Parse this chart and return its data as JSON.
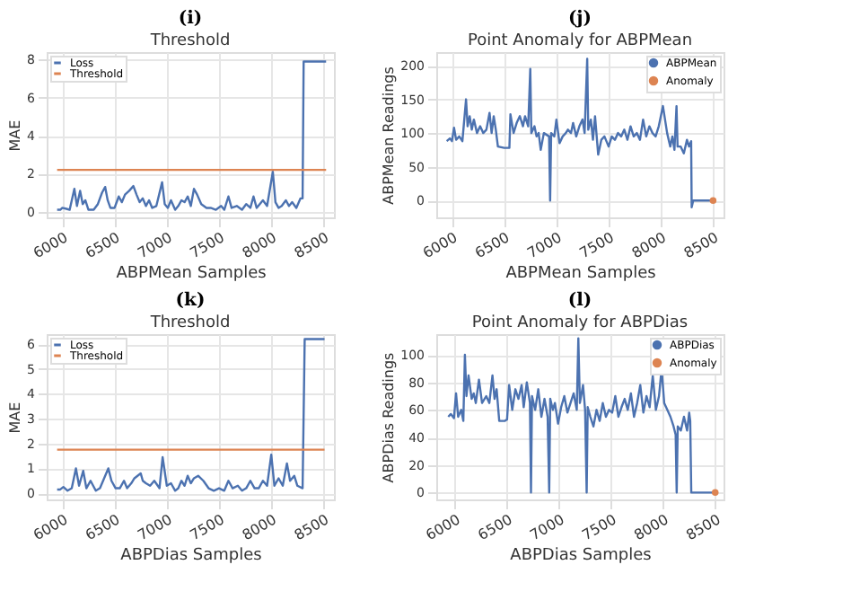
{
  "chart_data": [
    {
      "type": "line",
      "title": "Threshold",
      "annotations": [
        "(i)"
      ],
      "xlabel": "ABPMean Samples",
      "ylabel": "MAE",
      "xlim": [
        5850,
        8600
      ],
      "xticks": [
        6000,
        6500,
        7000,
        7500,
        8000,
        8500
      ],
      "ylim": [
        -0.3,
        8.4
      ],
      "yticks": [
        0,
        2,
        4,
        6,
        8
      ],
      "grid": true,
      "legend": "top left",
      "series": [
        {
          "name": "Loss",
          "color": "#4c72b0",
          "x": [
            5950,
            5980,
            6000,
            6040,
            6070,
            6115,
            6140,
            6170,
            6195,
            6220,
            6250,
            6300,
            6340,
            6380,
            6410,
            6434,
            6460,
            6500,
            6540,
            6570,
            6600,
            6640,
            6680,
            6710,
            6740,
            6770,
            6800,
            6830,
            6860,
            6900,
            6955,
            6980,
            7010,
            7040,
            7080,
            7110,
            7140,
            7170,
            7200,
            7230,
            7260,
            7290,
            7330,
            7380,
            7420,
            7470,
            7520,
            7550,
            7590,
            7620,
            7670,
            7720,
            7760,
            7800,
            7830,
            7860,
            7920,
            7960,
            8015,
            8040,
            8070,
            8100,
            8140,
            8170,
            8200,
            8240,
            8280,
            8300,
            8310,
            8525
          ],
          "values": [
            0.1,
            0.1,
            0.2,
            0.15,
            0.1,
            1.2,
            0.3,
            1.1,
            0.4,
            0.6,
            0.1,
            0.1,
            0.4,
            1.0,
            1.3,
            0.6,
            0.2,
            0.2,
            0.8,
            0.5,
            0.9,
            1.1,
            1.35,
            0.9,
            0.5,
            0.7,
            0.3,
            0.6,
            0.2,
            0.3,
            1.55,
            0.4,
            0.2,
            0.6,
            0.1,
            0.3,
            0.6,
            0.5,
            0.8,
            0.3,
            1.2,
            0.9,
            0.4,
            0.2,
            0.2,
            0.1,
            0.3,
            0.1,
            0.8,
            0.2,
            0.3,
            0.1,
            0.4,
            0.2,
            0.8,
            0.2,
            0.6,
            0.3,
            2.1,
            0.5,
            0.2,
            0.3,
            0.6,
            0.3,
            0.5,
            0.2,
            0.7,
            0.7,
            7.9,
            7.9
          ]
        },
        {
          "name": "Threshold",
          "color": "#dd8452",
          "x": [
            5950,
            8525
          ],
          "values": [
            2.2,
            2.2
          ]
        }
      ]
    },
    {
      "type": "line",
      "title": "Point Anomaly for ABPMean",
      "annotations": [
        "(j)"
      ],
      "xlabel": "ABPMean Samples",
      "ylabel": "ABPMean Readings",
      "xlim": [
        5850,
        8600
      ],
      "xticks": [
        6000,
        6500,
        7000,
        7500,
        8000,
        8500
      ],
      "ylim": [
        -25,
        220
      ],
      "yticks": [
        0,
        50,
        100,
        150,
        200
      ],
      "grid": true,
      "legend": "top right",
      "series": [
        {
          "name": "ABPMean",
          "color": "#4c72b0",
          "x": [
            5950,
            5980,
            6000,
            6020,
            6040,
            6070,
            6100,
            6135,
            6150,
            6170,
            6190,
            6210,
            6240,
            6270,
            6300,
            6330,
            6360,
            6380,
            6400,
            6420,
            6440,
            6500,
            6550,
            6560,
            6590,
            6620,
            6650,
            6680,
            6700,
            6730,
            6750,
            6760,
            6790,
            6810,
            6830,
            6850,
            6880,
            6900,
            6930,
            6940,
            6950,
            6980,
            7000,
            7030,
            7060,
            7090,
            7110,
            7140,
            7160,
            7190,
            7220,
            7250,
            7270,
            7295,
            7305,
            7330,
            7350,
            7370,
            7400,
            7430,
            7460,
            7500,
            7530,
            7560,
            7590,
            7620,
            7650,
            7680,
            7710,
            7740,
            7770,
            7800,
            7830,
            7860,
            7890,
            7920,
            7950,
            7980,
            8020,
            8040,
            8060,
            8090,
            8110,
            8130,
            8150,
            8160,
            8190,
            8220,
            8250,
            8270,
            8290,
            8295,
            8310,
            8500
          ],
          "values": [
            88,
            92,
            88,
            108,
            90,
            95,
            88,
            150,
            110,
            125,
            105,
            120,
            100,
            110,
            100,
            105,
            130,
            100,
            125,
            105,
            80,
            78,
            78,
            128,
            100,
            115,
            125,
            110,
            125,
            110,
            195,
            100,
            110,
            95,
            100,
            75,
            100,
            98,
            95,
            0,
            100,
            95,
            120,
            85,
            95,
            100,
            105,
            100,
            115,
            95,
            110,
            120,
            100,
            210,
            105,
            120,
            90,
            125,
            68,
            90,
            95,
            80,
            95,
            90,
            100,
            95,
            105,
            90,
            110,
            95,
            100,
            90,
            120,
            95,
            110,
            100,
            95,
            110,
            140,
            120,
            100,
            80,
            95,
            75,
            140,
            80,
            80,
            70,
            90,
            80,
            88,
            -10,
            0,
            0
          ]
        },
        {
          "name": "Anomaly",
          "type": "scatter",
          "color": "#dd8452",
          "x": [
            8500
          ],
          "values": [
            0
          ]
        }
      ]
    },
    {
      "type": "line",
      "title": "Threshold",
      "annotations": [
        "(k)"
      ],
      "xlabel": "ABPDias Samples",
      "ylabel": "MAE",
      "xlim": [
        5850,
        8600
      ],
      "xticks": [
        6000,
        6500,
        7000,
        7500,
        8000,
        8500
      ],
      "ylim": [
        -0.25,
        6.4
      ],
      "yticks": [
        0,
        1,
        2,
        3,
        4,
        5,
        6
      ],
      "grid": true,
      "legend": "top left",
      "series": [
        {
          "name": "Loss",
          "color": "#4c72b0",
          "x": [
            5950,
            5980,
            6010,
            6050,
            6090,
            6130,
            6160,
            6200,
            6230,
            6270,
            6320,
            6360,
            6400,
            6440,
            6470,
            6510,
            6550,
            6590,
            6620,
            6660,
            6690,
            6720,
            6750,
            6770,
            6800,
            6840,
            6880,
            6930,
            6960,
            7000,
            7040,
            7080,
            7110,
            7140,
            7170,
            7200,
            7230,
            7260,
            7300,
            7350,
            7400,
            7450,
            7500,
            7550,
            7590,
            7630,
            7680,
            7720,
            7760,
            7800,
            7840,
            7880,
            7920,
            7960,
            8000,
            8030,
            8070,
            8110,
            8150,
            8180,
            8220,
            8250,
            8300,
            8320,
            8510
          ],
          "values": [
            0.15,
            0.15,
            0.25,
            0.1,
            0.2,
            1.0,
            0.3,
            0.9,
            0.2,
            0.5,
            0.1,
            0.2,
            0.6,
            1.0,
            0.5,
            0.2,
            0.2,
            0.5,
            0.2,
            0.4,
            0.6,
            0.7,
            0.8,
            0.5,
            0.4,
            0.3,
            0.5,
            0.2,
            1.45,
            0.3,
            0.4,
            0.1,
            0.2,
            0.5,
            0.3,
            0.7,
            0.4,
            0.6,
            0.7,
            0.5,
            0.2,
            0.1,
            0.2,
            0.1,
            0.5,
            0.2,
            0.3,
            0.1,
            0.2,
            0.5,
            0.2,
            0.2,
            0.5,
            0.3,
            1.55,
            0.3,
            0.6,
            0.3,
            1.2,
            0.5,
            0.7,
            0.3,
            0.2,
            6.2,
            6.2
          ]
        },
        {
          "name": "Threshold",
          "color": "#dd8452",
          "x": [
            5950,
            8510
          ],
          "values": [
            1.75,
            1.75
          ]
        }
      ]
    },
    {
      "type": "line",
      "title": "Point Anomaly for ABPDias",
      "annotations": [
        "(l)"
      ],
      "xlabel": "ABPDias Samples",
      "ylabel": "ABPDias Readings",
      "xlim": [
        5820,
        8580
      ],
      "xticks": [
        6000,
        6500,
        7000,
        7500,
        8000,
        8500
      ],
      "ylim": [
        -5,
        115
      ],
      "yticks": [
        0,
        20,
        40,
        60,
        80,
        100
      ],
      "grid": true,
      "legend": "top right",
      "series": [
        {
          "name": "ABPDias",
          "color": "#4c72b0",
          "x": [
            5935,
            5960,
            5990,
            6010,
            6030,
            6060,
            6080,
            6095,
            6110,
            6130,
            6160,
            6180,
            6200,
            6230,
            6260,
            6300,
            6330,
            6360,
            6380,
            6400,
            6425,
            6480,
            6500,
            6520,
            6550,
            6580,
            6610,
            6640,
            6660,
            6690,
            6720,
            6730,
            6740,
            6770,
            6800,
            6830,
            6860,
            6890,
            6905,
            6915,
            6940,
            6960,
            6990,
            7020,
            7050,
            7080,
            7110,
            7140,
            7170,
            7185,
            7200,
            7230,
            7250,
            7265,
            7275,
            7300,
            7330,
            7360,
            7390,
            7420,
            7450,
            7480,
            7510,
            7540,
            7570,
            7600,
            7630,
            7660,
            7690,
            7720,
            7750,
            7780,
            7810,
            7840,
            7870,
            7900,
            7930,
            7960,
            7985,
            8010,
            8040,
            8070,
            8100,
            8120,
            8130,
            8140,
            8170,
            8200,
            8230,
            8250,
            8260,
            8270,
            8500
          ],
          "values": [
            55,
            57,
            54,
            72,
            55,
            60,
            52,
            100,
            70,
            85,
            68,
            72,
            65,
            82,
            65,
            70,
            65,
            85,
            68,
            75,
            52,
            52,
            53,
            78,
            60,
            75,
            68,
            78,
            62,
            80,
            65,
            0,
            70,
            60,
            75,
            55,
            68,
            55,
            0,
            68,
            60,
            65,
            50,
            62,
            70,
            58,
            65,
            72,
            60,
            112,
            65,
            78,
            60,
            0,
            62,
            55,
            48,
            60,
            52,
            65,
            55,
            60,
            58,
            70,
            55,
            62,
            68,
            60,
            72,
            55,
            65,
            78,
            58,
            70,
            62,
            85,
            60,
            70,
            90,
            65,
            60,
            55,
            48,
            42,
            0,
            48,
            45,
            55,
            45,
            58,
            52,
            0,
            0
          ]
        },
        {
          "name": "Anomaly",
          "type": "scatter",
          "color": "#dd8452",
          "x": [
            8500
          ],
          "values": [
            0
          ]
        }
      ]
    }
  ]
}
